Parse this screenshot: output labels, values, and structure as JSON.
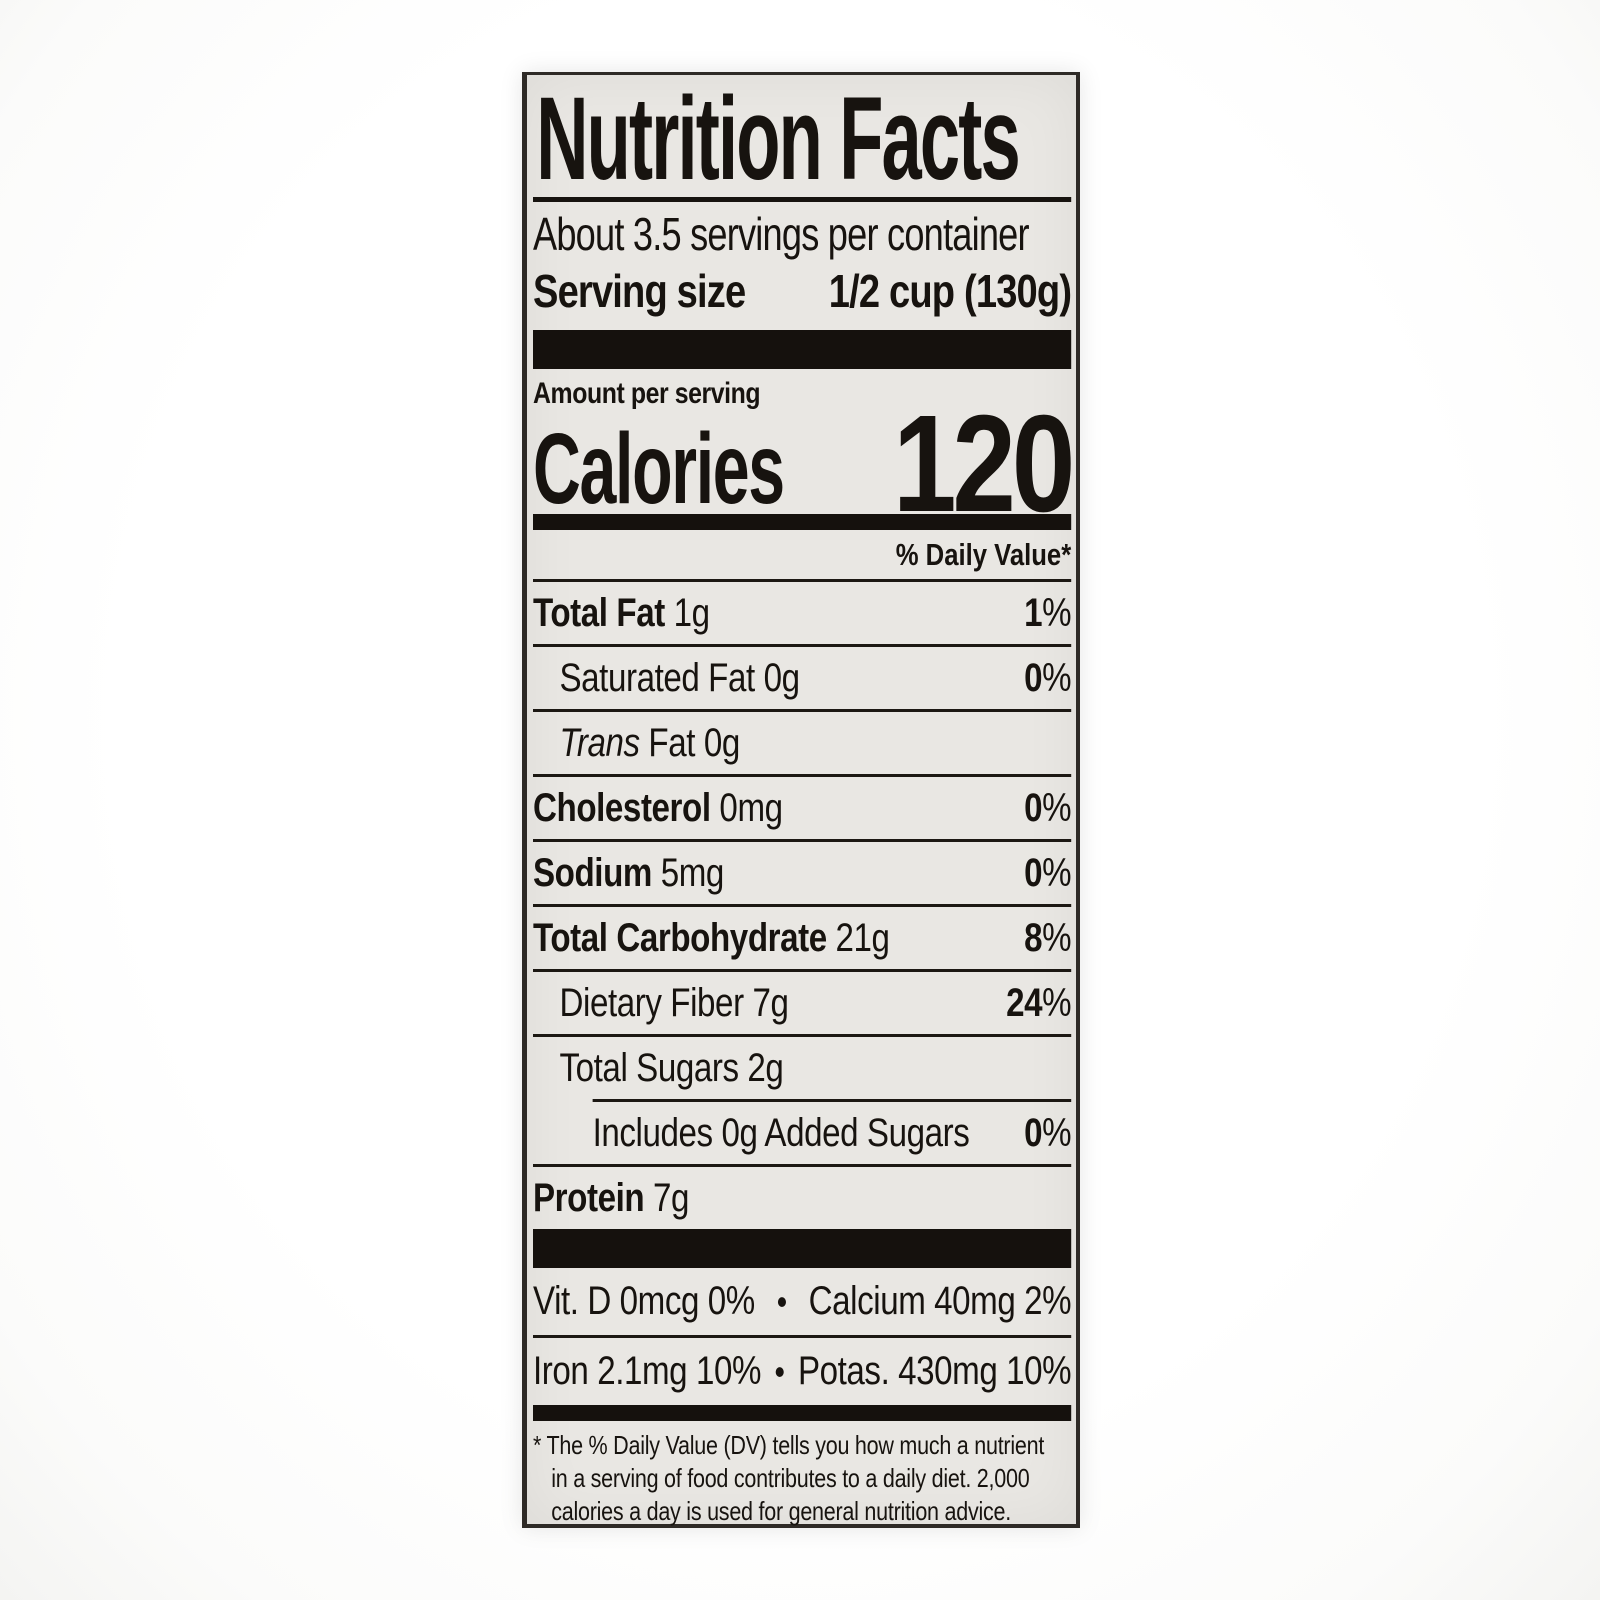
{
  "label": {
    "title": "Nutrition Facts",
    "servings_per_container": "About 3.5 servings per container",
    "serving_size": {
      "label": "Serving size",
      "value": "1/2 cup (130g)"
    },
    "amount_per_serving": "Amount per serving",
    "calories": {
      "label": "Calories",
      "value": "120"
    },
    "daily_value_header": "% Daily Value*",
    "nutrient_rows": [
      {
        "parts": [
          {
            "text": "Total Fat",
            "bold": true
          },
          {
            "text": " 1g"
          }
        ],
        "pct": "1%",
        "indent": 0
      },
      {
        "parts": [
          {
            "text": "Saturated Fat 0g"
          }
        ],
        "pct": "0%",
        "indent": 1
      },
      {
        "parts": [
          {
            "text": "Trans",
            "italic": true
          },
          {
            "text": " Fat 0g"
          }
        ],
        "pct": "",
        "indent": 1
      },
      {
        "parts": [
          {
            "text": "Cholesterol",
            "bold": true
          },
          {
            "text": " 0mg"
          }
        ],
        "pct": "0%",
        "indent": 0
      },
      {
        "parts": [
          {
            "text": "Sodium",
            "bold": true
          },
          {
            "text": " 5mg"
          }
        ],
        "pct": "0%",
        "indent": 0
      },
      {
        "parts": [
          {
            "text": "Total Carbohydrate",
            "bold": true
          },
          {
            "text": " 21g"
          }
        ],
        "pct": "8%",
        "indent": 0
      },
      {
        "parts": [
          {
            "text": "Dietary Fiber 7g"
          }
        ],
        "pct": "24%",
        "indent": 1
      },
      {
        "parts": [
          {
            "text": "Total Sugars 2g"
          }
        ],
        "pct": "",
        "indent": 1
      },
      {
        "parts": [
          {
            "text": "Includes 0g Added Sugars"
          }
        ],
        "pct": "0%",
        "indent": 2,
        "indented_rule": true
      },
      {
        "parts": [
          {
            "text": "Protein",
            "bold": true
          },
          {
            "text": " 7g"
          }
        ],
        "pct": "",
        "indent": 0
      }
    ],
    "micronutrients": {
      "bullet": "•",
      "rows": [
        {
          "left": "Vit. D 0mcg 0%",
          "right": "Calcium 40mg 2%"
        },
        {
          "left": "Iron 2.1mg 10%",
          "right": "Potas. 430mg 10%"
        }
      ]
    },
    "footnote": "* The % Daily Value (DV) tells you how much a nutrient\nin a serving of food contributes to a daily diet. 2,000\ncalories a day is used for general nutrition advice.",
    "colors": {
      "label_bg": "#e9e7e3",
      "ink": "#17130f",
      "page_bg": "#ffffff"
    }
  }
}
